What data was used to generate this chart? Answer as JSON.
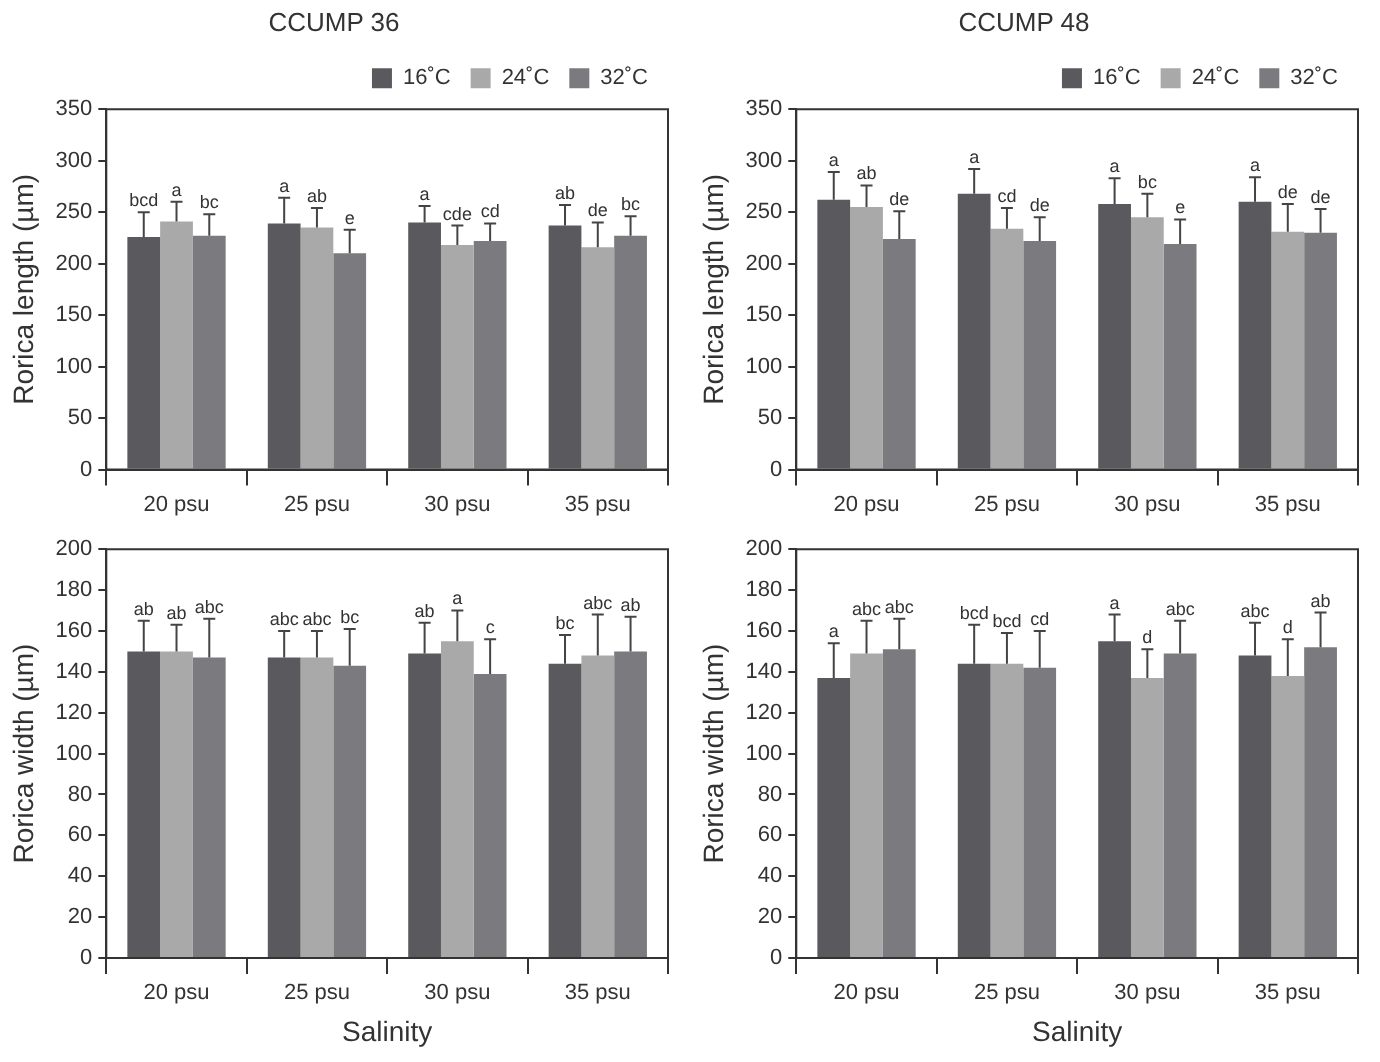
{
  "chart_data": [
    {
      "type": "bar",
      "title": "CCUMP 36",
      "ylabel": "Rorica length (µm)",
      "categories": [
        "20 psu",
        "25 psu",
        "30 psu",
        "35 psu"
      ],
      "ylim": [
        0,
        350
      ],
      "yticks": [
        0,
        50,
        100,
        150,
        200,
        250,
        300,
        350
      ],
      "legend": "top right",
      "series": [
        {
          "name": "16˚C",
          "color": "#5a5a5e",
          "values": [
            226,
            239,
            240,
            237
          ],
          "errors": [
            24,
            25,
            16,
            20
          ],
          "value_labels": [
            "bcd",
            "a",
            "a",
            "ab"
          ]
        },
        {
          "name": "24˚C",
          "color": "#a9a9a9",
          "values": [
            241,
            235,
            218,
            216
          ],
          "errors": [
            19,
            19,
            19,
            24
          ],
          "value_labels": [
            "a",
            "ab",
            "cde",
            "de"
          ]
        },
        {
          "name": "32˚C",
          "color": "#7b7b7f",
          "values": [
            227,
            210,
            222,
            227
          ],
          "errors": [
            21,
            23,
            17,
            19
          ],
          "value_labels": [
            "bc",
            "e",
            "cd",
            "bc"
          ]
        }
      ]
    },
    {
      "type": "bar",
      "title": "CCUMP 48",
      "ylabel": "Rorica length (µm)",
      "categories": [
        "20 psu",
        "25 psu",
        "30 psu",
        "35 psu"
      ],
      "ylim": [
        0,
        350
      ],
      "yticks": [
        0,
        50,
        100,
        150,
        200,
        250,
        300,
        350
      ],
      "legend": "top right",
      "series": [
        {
          "name": "16˚C",
          "color": "#5a5a5e",
          "values": [
            262,
            268,
            258,
            260
          ],
          "errors": [
            27,
            24,
            25,
            24
          ],
          "value_labels": [
            "a",
            "a",
            "a",
            "a"
          ]
        },
        {
          "name": "24˚C",
          "color": "#a9a9a9",
          "values": [
            255,
            234,
            245,
            231
          ],
          "errors": [
            21,
            20,
            23,
            27
          ],
          "value_labels": [
            "ab",
            "cd",
            "bc",
            "de"
          ]
        },
        {
          "name": "32˚C",
          "color": "#7b7b7f",
          "values": [
            224,
            222,
            219,
            230
          ],
          "errors": [
            27,
            23,
            24,
            23
          ],
          "value_labels": [
            "de",
            "de",
            "e",
            "de"
          ]
        }
      ]
    },
    {
      "type": "bar",
      "xlabel": "Salinity",
      "ylabel": "Rorica width (µm)",
      "categories": [
        "20 psu",
        "25 psu",
        "30 psu",
        "35 psu"
      ],
      "ylim": [
        0,
        200
      ],
      "yticks": [
        0,
        20,
        40,
        60,
        80,
        100,
        120,
        140,
        160,
        180,
        200
      ],
      "series": [
        {
          "color": "#5a5a5e",
          "values": [
            150,
            147,
            149,
            144
          ],
          "errors": [
            15,
            13,
            15,
            14
          ],
          "value_labels": [
            "ab",
            "abc",
            "ab",
            "bc"
          ]
        },
        {
          "color": "#a9a9a9",
          "values": [
            150,
            147,
            155,
            148
          ],
          "errors": [
            13,
            13,
            15,
            20
          ],
          "value_labels": [
            "ab",
            "abc",
            "a",
            "abc"
          ]
        },
        {
          "color": "#7b7b7f",
          "values": [
            147,
            143,
            139,
            150
          ],
          "errors": [
            19,
            18,
            17,
            17
          ],
          "value_labels": [
            "abc",
            "bc",
            "c",
            "ab"
          ]
        }
      ]
    },
    {
      "type": "bar",
      "xlabel": "Salinity",
      "ylabel": "Rorica width (µm)",
      "categories": [
        "20 psu",
        "25 psu",
        "30 psu",
        "35 psu"
      ],
      "ylim": [
        0,
        200
      ],
      "yticks": [
        0,
        20,
        40,
        60,
        80,
        100,
        120,
        140,
        160,
        180,
        200
      ],
      "series": [
        {
          "color": "#5a5a5e",
          "values": [
            137,
            144,
            155,
            148
          ],
          "errors": [
            17,
            19,
            13,
            16
          ],
          "value_labels": [
            "a",
            "bcd",
            "a",
            "abc"
          ]
        },
        {
          "color": "#a9a9a9",
          "values": [
            149,
            144,
            137,
            138
          ],
          "errors": [
            16,
            15,
            14,
            18
          ],
          "value_labels": [
            "abc",
            "bcd",
            "d",
            "d"
          ]
        },
        {
          "color": "#7b7b7f",
          "values": [
            151,
            142,
            149,
            152
          ],
          "errors": [
            15,
            18,
            16,
            17
          ],
          "value_labels": [
            "abc",
            "cd",
            "abc",
            "ab"
          ]
        }
      ]
    }
  ]
}
